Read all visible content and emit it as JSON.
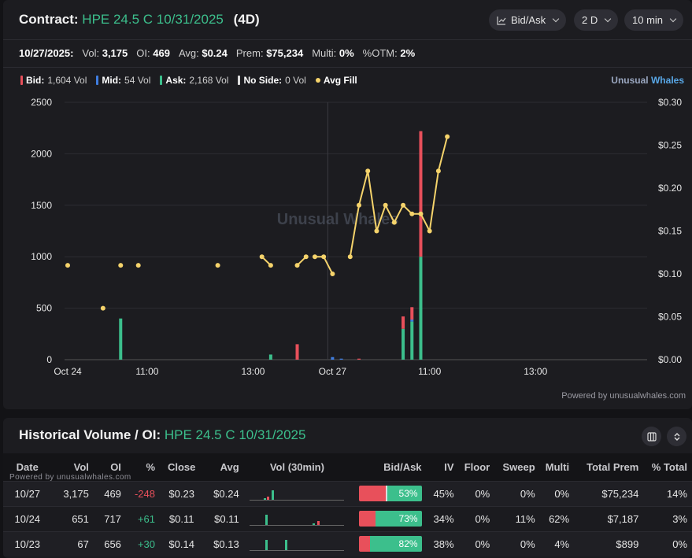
{
  "header": {
    "label": "Contract:",
    "contract": "HPE 24.5 C 10/31/2025",
    "dte": "(4D)",
    "buttons": {
      "chart_type": "Bid/Ask",
      "range": "2 D",
      "interval": "10 min"
    }
  },
  "stats": [
    {
      "label": "10/27/2025:",
      "value": ""
    },
    {
      "label": "Vol:",
      "value": "3,175"
    },
    {
      "label": "OI:",
      "value": "469"
    },
    {
      "label": "Avg:",
      "value": "$0.24"
    },
    {
      "label": "Prem:",
      "value": "$75,234"
    },
    {
      "label": "Multi:",
      "value": "0%"
    },
    {
      "label": "%OTM:",
      "value": "2%"
    }
  ],
  "legend": [
    {
      "name": "Bid:",
      "value": "1,604 Vol",
      "color": "#e8505b",
      "kind": "bar"
    },
    {
      "name": "Mid:",
      "value": "54 Vol",
      "color": "#3f7de0",
      "kind": "bar"
    },
    {
      "name": "Ask:",
      "value": "2,168 Vol",
      "color": "#3cbf8c",
      "kind": "bar"
    },
    {
      "name": "No Side:",
      "value": "0 Vol",
      "color": "#dddddd",
      "kind": "bar"
    },
    {
      "name": "Avg Fill",
      "value": "",
      "color": "#f5d36b",
      "kind": "dot"
    }
  ],
  "brand": {
    "part1": "Unusual",
    "part2": "Whales"
  },
  "watermark": "Unusual Whales",
  "powered_by": "Powered by unusualwhales.com",
  "chart_data": {
    "type": "bar",
    "y_left": {
      "ticks": [
        "2500",
        "2000",
        "1500",
        "1000",
        "500",
        "0"
      ],
      "ylim": [
        0,
        2500
      ]
    },
    "y_right": {
      "ticks": [
        "$0.30",
        "$0.25",
        "$0.20",
        "$0.15",
        "$0.10",
        "$0.05",
        "$0.00"
      ],
      "ylim": [
        0,
        0.3
      ]
    },
    "x_ticks": [
      {
        "label": "Oct 24",
        "slot": 0
      },
      {
        "label": "11:00",
        "slot": 9
      },
      {
        "label": "13:00",
        "slot": 21
      },
      {
        "label": "Oct 27",
        "slot": 30
      },
      {
        "label": "11:00",
        "slot": 41
      },
      {
        "label": "13:00",
        "slot": 53
      }
    ],
    "slots": 66,
    "day_split_slot": 30,
    "volume_bars": [
      {
        "slot": 6,
        "bid": 0,
        "mid": 0,
        "ask": 400
      },
      {
        "slot": 23,
        "bid": 0,
        "mid": 0,
        "ask": 50
      },
      {
        "slot": 26,
        "bid": 150,
        "mid": 0,
        "ask": 0
      },
      {
        "slot": 30,
        "bid": 0,
        "mid": 25,
        "ask": 0
      },
      {
        "slot": 31,
        "bid": 0,
        "mid": 10,
        "ask": 0
      },
      {
        "slot": 33,
        "bid": 10,
        "mid": 0,
        "ask": 0
      },
      {
        "slot": 38,
        "bid": 120,
        "mid": 0,
        "ask": 300
      },
      {
        "slot": 39,
        "bid": 120,
        "mid": 20,
        "ask": 370
      },
      {
        "slot": 40,
        "bid": 1220,
        "mid": 0,
        "ask": 1000
      }
    ],
    "avg_fill_segments": [
      [
        {
          "slot": 0,
          "price": 0.11
        }
      ],
      [
        {
          "slot": 4,
          "price": 0.06
        }
      ],
      [
        {
          "slot": 6,
          "price": 0.11
        }
      ],
      [
        {
          "slot": 8,
          "price": 0.11
        }
      ],
      [
        {
          "slot": 17,
          "price": 0.11
        }
      ],
      [
        {
          "slot": 22,
          "price": 0.12
        },
        {
          "slot": 23,
          "price": 0.11
        }
      ],
      [
        {
          "slot": 26,
          "price": 0.11
        },
        {
          "slot": 27,
          "price": 0.12
        }
      ],
      [
        {
          "slot": 28,
          "price": 0.12
        },
        {
          "slot": 29,
          "price": 0.12
        },
        {
          "slot": 30,
          "price": 0.1
        }
      ],
      [
        {
          "slot": 32,
          "price": 0.12
        },
        {
          "slot": 33,
          "price": 0.18
        },
        {
          "slot": 34,
          "price": 0.22
        },
        {
          "slot": 35,
          "price": 0.15
        },
        {
          "slot": 36,
          "price": 0.18
        },
        {
          "slot": 37,
          "price": 0.16
        },
        {
          "slot": 38,
          "price": 0.18
        },
        {
          "slot": 39,
          "price": 0.17
        },
        {
          "slot": 40,
          "price": 0.17
        },
        {
          "slot": 41,
          "price": 0.15
        },
        {
          "slot": 42,
          "price": 0.22
        },
        {
          "slot": 43,
          "price": 0.26
        }
      ]
    ]
  },
  "history": {
    "title_label": "Historical Volume / OI:",
    "title_contract": "HPE 24.5 C 10/31/2025",
    "powered_by": "Powered by unusualwhales.com",
    "columns": [
      "Date",
      "Vol",
      "OI",
      "%",
      "Close",
      "Avg",
      "Vol (30min)",
      "Bid/Ask",
      "IV",
      "Floor",
      "Sweep",
      "Multi",
      "Total Prem",
      "% Total"
    ],
    "rows": [
      {
        "date": "10/27",
        "vol": "3,175",
        "oi": "469",
        "chg": "-248",
        "chg_dir": "neg",
        "close": "$0.23",
        "avg": "$0.24",
        "spark": [
          {
            "x": 18,
            "h": 2
          },
          {
            "x": 22,
            "h": 4
          },
          {
            "x": 28,
            "h": 12
          }
        ],
        "bid_pct": 43,
        "mid_pct": 2,
        "ask_label": "53%",
        "iv": "45%",
        "floor": "0%",
        "sweep": "0%",
        "multi": "0%",
        "total_prem": "$75,234",
        "pct_total": "14%"
      },
      {
        "date": "10/24",
        "vol": "651",
        "oi": "717",
        "chg": "+61",
        "chg_dir": "pos",
        "close": "$0.11",
        "avg": "$0.11",
        "spark": [
          {
            "x": 20,
            "h": 13
          },
          {
            "x": 80,
            "h": 2
          },
          {
            "x": 86,
            "h": 5
          }
        ],
        "bid_pct": 27,
        "mid_pct": 0,
        "ask_label": "73%",
        "iv": "34%",
        "floor": "0%",
        "sweep": "11%",
        "multi": "62%",
        "total_prem": "$7,187",
        "pct_total": "3%"
      },
      {
        "date": "10/23",
        "vol": "67",
        "oi": "656",
        "chg": "+30",
        "chg_dir": "pos",
        "close": "$0.14",
        "avg": "$0.13",
        "spark": [
          {
            "x": 20,
            "h": 13
          },
          {
            "x": 45,
            "h": 13
          }
        ],
        "bid_pct": 18,
        "mid_pct": 0,
        "ask_label": "82%",
        "iv": "38%",
        "floor": "0%",
        "sweep": "0%",
        "multi": "4%",
        "total_prem": "$899",
        "pct_total": "0%"
      }
    ]
  }
}
